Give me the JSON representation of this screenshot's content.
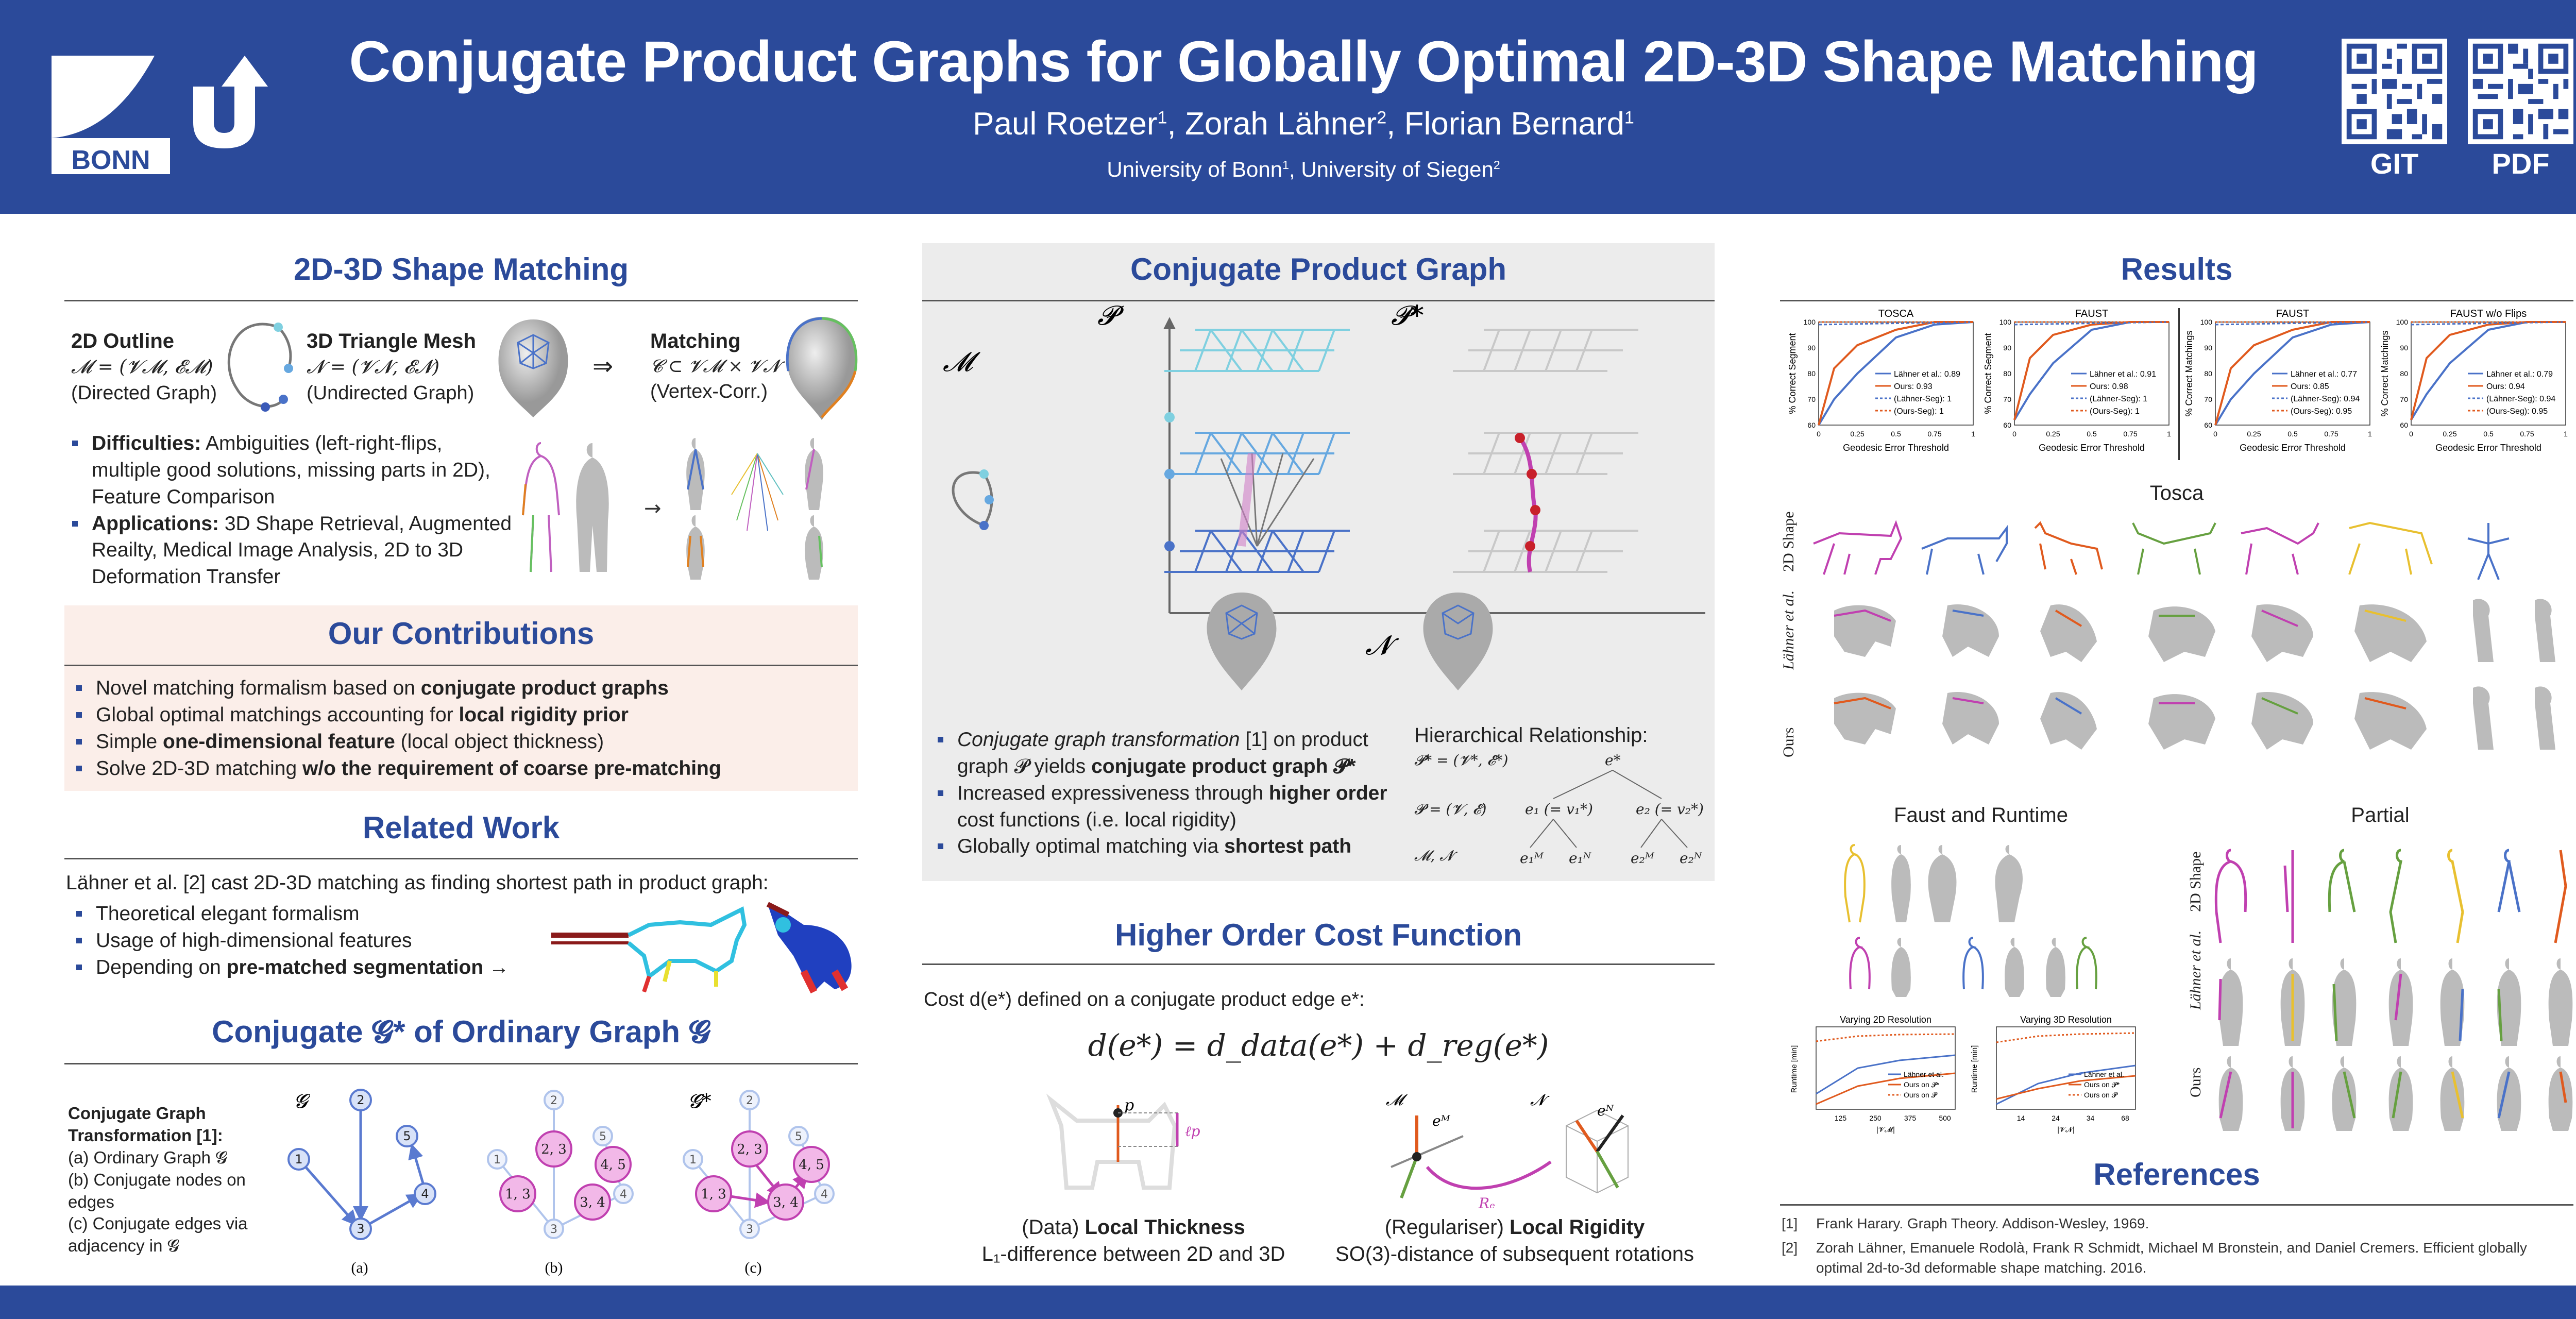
{
  "header": {
    "title": "Conjugate Product Graphs for Globally Optimal 2D-3D Shape Matching",
    "authors": [
      {
        "name": "Paul Roetzer",
        "sup": "1"
      },
      {
        "name": "Zorah Lähner",
        "sup": "2"
      },
      {
        "name": "Florian Bernard",
        "sup": "1"
      }
    ],
    "affiliations": [
      {
        "name": "University of Bonn",
        "sup": "1"
      },
      {
        "name": "University of Siegen",
        "sup": "2"
      }
    ],
    "logo_text": "BONN",
    "qr_labels": [
      "GIT",
      "PDF"
    ]
  },
  "matching": {
    "title": "2D-3D Shape Matching",
    "outline_title": "2D Outline",
    "outline_math": "𝓜 = (𝓥𝓜, 𝓔𝓜)",
    "outline_note": "(Directed Graph)",
    "mesh_title": "3D Triangle Mesh",
    "mesh_math": "𝓝 = (𝓥𝓝, 𝓔𝓝)",
    "mesh_note": "(Undirected Graph)",
    "arrow": "⇒",
    "result_title": "Matching",
    "result_math": "𝓒 ⊂ 𝓥𝓜 × 𝓥𝓝",
    "result_note": "(Vertex-Corr.)",
    "bullets": [
      {
        "bold": "Difficulties:",
        "text": " Ambiguities (left-right-flips, multiple good solutions, missing parts in 2D), Feature Comparison"
      },
      {
        "bold": "Applications:",
        "text": " 3D Shape Retrieval, Augmented Reailty, Medical Image Analysis, 2D to 3D Deformation Transfer"
      }
    ]
  },
  "contributions": {
    "title": "Our Contributions",
    "items": [
      {
        "pre": "Novel matching formalism based on ",
        "bold": "conjugate product graphs",
        "post": ""
      },
      {
        "pre": "Global optimal matchings accounting for ",
        "bold": "local rigidity prior",
        "post": ""
      },
      {
        "pre": "Simple ",
        "bold": "one-dimensional feature",
        "post": " (local object thickness)"
      },
      {
        "pre": "Solve 2D-3D matching ",
        "bold": "w/o the requirement of coarse pre-matching",
        "post": ""
      }
    ]
  },
  "related": {
    "title": "Related Work",
    "intro": "Lähner et al. [2] cast 2D-3D matching as finding shortest path in product graph:",
    "items": [
      {
        "pre": "Theoretical elegant formalism",
        "bold": "",
        "post": ""
      },
      {
        "pre": "Usage of high-dimensional features",
        "bold": "",
        "post": ""
      },
      {
        "pre": "Depending on ",
        "bold": "pre-matched segmentation",
        "post": " →"
      }
    ]
  },
  "conjugate": {
    "title": "Conjugate 𝓖* of Ordinary Graph 𝓖",
    "desc_title": "Conjugate Graph Transformation [1]:",
    "desc_items": [
      "(a) Ordinary Graph 𝓖",
      "(b) Conjugate nodes on edges",
      "(c) Conjugate edges via adjacency in 𝓖"
    ],
    "labels": [
      "𝓖",
      "𝓖*"
    ],
    "sub": [
      "(a)",
      "(b)",
      "(c)"
    ],
    "nodes": [
      "1",
      "2",
      "3",
      "4",
      "5"
    ],
    "edge_nodes": [
      "2, 3",
      "1, 3",
      "4, 5",
      "3, 4"
    ]
  },
  "cpg": {
    "title": "Conjugate Product Graph",
    "labels": {
      "M": "𝓜",
      "P": "𝓟",
      "Pstar": "𝓟*",
      "N": "𝓝"
    },
    "bullets": [
      {
        "ital": "Conjugate graph transformation",
        "pre": " [1] on product graph 𝓟 yields ",
        "bold": "conjugate product graph 𝓟*",
        "post": ""
      },
      {
        "ital": "",
        "pre": "Increased expressiveness through ",
        "bold": "higher order",
        "post": " cost functions (i.e. local rigidity)"
      },
      {
        "ital": "",
        "pre": "Globally optimal matching via ",
        "bold": "shortest path",
        "post": ""
      }
    ],
    "hier_title": "Hierarchical Relationship:",
    "hier_lines": [
      "𝓟* = (𝓥*, 𝓔*)",
      "𝓟 = (𝓥, 𝓔)",
      "𝓜, 𝓝"
    ],
    "tree": [
      "e*",
      "e₁ (= v₁*)",
      "e₂ (= v₂*)",
      "e₁ᴹ",
      "e₁ᴺ",
      "e₂ᴹ",
      "e₂ᴺ"
    ]
  },
  "cost": {
    "title": "Higher Order Cost Function",
    "intro": "Cost d(e*) defined on a conjugate product edge e*:",
    "formula": "d(e*) = d_data(e*) + d_reg(e*)",
    "data_label": "(Data) ",
    "data_bold": "Local Thickness",
    "data_sub": "L₁-difference between 2D and 3D",
    "reg_label": "(Regulariser) ",
    "reg_bold": "Local Rigidity",
    "reg_sub": "SO(3)-distance of subsequent rotations",
    "fig_labels": {
      "p": "p",
      "lp": "ℓp",
      "M": "𝓜",
      "N": "𝓝",
      "eM": "eᴹ",
      "eN": "eᴺ",
      "Re": "Rₑ"
    }
  },
  "results": {
    "title": "Results",
    "tosca_title": "Tosca",
    "faust_title": "Faust and Runtime",
    "partial_title": "Partial",
    "row_labels": [
      "2D Shape",
      "Lähner et al.",
      "Ours"
    ],
    "plots": [
      {
        "title": "TOSCA",
        "ylabel": "% Correct Segment",
        "legend": [
          "Lähner et al.: 0.89",
          "Ours: 0.93",
          "(Lähner-Seg): 1",
          "(Ours-Seg): 1"
        ]
      },
      {
        "title": "FAUST",
        "ylabel": "% Correct Segment",
        "legend": [
          "Lähner et al.: 0.91",
          "Ours: 0.98",
          "(Lähner-Seg): 1",
          "(Ours-Seg): 1"
        ]
      },
      {
        "title": "FAUST",
        "ylabel": "% Correct Matchings",
        "legend": [
          "Lähner et al.: 0.77",
          "Ours: 0.85",
          "(Lähner-Seg): 0.94",
          "(Ours-Seg): 0.95"
        ]
      },
      {
        "title": "FAUST w/o Flips",
        "ylabel": "% Correct Matchings",
        "legend": [
          "Lähner et al.: 0.79",
          "Ours: 0.94",
          "(Lähner-Seg): 0.94",
          "(Ours-Seg): 0.95"
        ]
      }
    ],
    "xlabel": "Geodesic Error Threshold",
    "runtime": [
      {
        "title": "Varying 2D Resolution",
        "ylabel": "Runtime [min]",
        "xlabel": "|𝓥𝓜|",
        "ticks": [
          "125",
          "250",
          "375",
          "500"
        ],
        "legend": [
          "Lähner et al.",
          "Ours on 𝓟*",
          "Ours on 𝓟"
        ]
      },
      {
        "title": "Varying 3D Resolution",
        "ylabel": "Runtime [min]",
        "xlabel": "|𝓥𝓝|",
        "ticks": [
          "14",
          "24",
          "34",
          "68"
        ],
        "legend": [
          "Lähner et al.",
          "Ours on 𝓟*",
          "Ours on 𝓟"
        ]
      }
    ]
  },
  "references": {
    "title": "References",
    "items": [
      {
        "num": "[1]",
        "text": "Frank Harary. Graph Theory. Addison-Wesley, 1969."
      },
      {
        "num": "[2]",
        "text": "Zorah Lähner, Emanuele Rodolà, Frank R Schmidt, Michael M Bronstein, and Daniel Cremers. Efficient globally optimal 2d-to-3d deformable shape matching. 2016."
      }
    ]
  },
  "colors": {
    "brand": "#2b4a9a",
    "pink": "#fbeee9",
    "panel_gray": "#ececec",
    "ours": "#e05a1e",
    "lahner": "#4a72c8",
    "magenta": "#c040b0"
  }
}
